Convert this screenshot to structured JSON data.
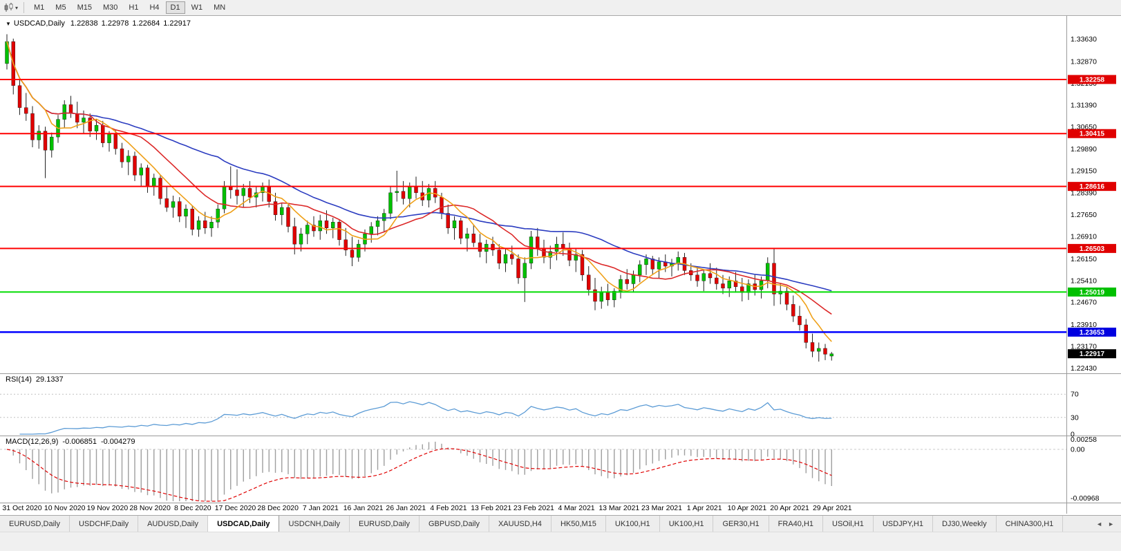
{
  "toolbar": {
    "chart_type_icon": "candlestick-chart-icon",
    "dropdown_caret": "▾",
    "timeframes": [
      "M1",
      "M5",
      "M15",
      "M30",
      "H1",
      "H4",
      "D1",
      "W1",
      "MN"
    ],
    "active": "D1"
  },
  "chart_header": {
    "menu_icon": "▼",
    "symbol": "USDCAD,Daily",
    "open": "1.22838",
    "high": "1.22978",
    "low": "1.22684",
    "close": "1.22917"
  },
  "price_axis": {
    "ticks": [
      "1.33630",
      "1.32870",
      "1.32130",
      "1.31390",
      "1.30650",
      "1.29890",
      "1.29150",
      "1.28390",
      "1.27650",
      "1.26910",
      "1.26150",
      "1.25410",
      "1.24670",
      "1.23910",
      "1.23170",
      "1.22430"
    ],
    "badges": [
      {
        "value": "1.32258",
        "color": "#e00000"
      },
      {
        "value": "1.30415",
        "color": "#e00000"
      },
      {
        "value": "1.28616",
        "color": "#e00000"
      },
      {
        "value": "1.26503",
        "color": "#e00000"
      },
      {
        "value": "1.25019",
        "color": "#00c000"
      },
      {
        "value": "1.23653",
        "color": "#0000e0"
      },
      {
        "value": "1.22917",
        "color": "#000000"
      }
    ]
  },
  "date_axis": [
    "31 Oct 2020",
    "10 Nov 2020",
    "19 Nov 2020",
    "28 Nov 2020",
    "8 Dec 2020",
    "17 Dec 2020",
    "28 Dec 2020",
    "7 Jan 2021",
    "16 Jan 2021",
    "26 Jan 2021",
    "4 Feb 2021",
    "13 Feb 2021",
    "23 Feb 2021",
    "4 Mar 2021",
    "13 Mar 2021",
    "23 Mar 2021",
    "1 Apr 2021",
    "10 Apr 2021",
    "20 Apr 2021",
    "29 Apr 2021"
  ],
  "rsi": {
    "label": "RSI(14)",
    "value": "29.1337",
    "axis": [
      "70",
      "30",
      "0"
    ]
  },
  "macd": {
    "label": "MACD(12,26,9)",
    "main": "-0.006851",
    "signal": "-0.004279",
    "axis": [
      "0.00258",
      "0.00",
      "-0.00968"
    ]
  },
  "tabs": {
    "items": [
      "EURUSD,Daily",
      "USDCHF,Daily",
      "AUDUSD,Daily",
      "USDCAD,Daily",
      "USDCNH,Daily",
      "EURUSD,Daily",
      "GBPUSD,Daily",
      "XAUUSD,H4",
      "HK50,M15",
      "UK100,H1",
      "UK100,H1",
      "GER30,H1",
      "FRA40,H1",
      "USOil,H1",
      "USDJPY,H1",
      "DJ30,Weekly",
      "CHINA300,H1"
    ],
    "active_index": 3,
    "scroll_left": "◄",
    "scroll_right": "►"
  },
  "chart_data": {
    "type": "candlestick",
    "symbol": "USDCAD",
    "timeframe": "Daily",
    "colors": {
      "up": "#00c000",
      "down": "#e00000",
      "rsi": "#5b9bd5",
      "macd_hist": "#9e9e9e",
      "macd_signal": "#e00000"
    },
    "ma": [
      {
        "name": "ma-slow-blue",
        "period": 34,
        "color": "#2b3cc0"
      },
      {
        "name": "ma-mid-red",
        "period": 14,
        "color": "#dc2828"
      },
      {
        "name": "ma-fast-orange",
        "period": 7,
        "color": "#efa018"
      }
    ],
    "levels": [
      {
        "price": 1.32258,
        "color": "#ff0000",
        "width": 2
      },
      {
        "price": 1.30415,
        "color": "#ff0000",
        "width": 2
      },
      {
        "price": 1.28616,
        "color": "#ff0000",
        "width": 2
      },
      {
        "price": 1.26503,
        "color": "#ff0000",
        "width": 2
      },
      {
        "price": 1.25019,
        "color": "#00dd00",
        "width": 2
      },
      {
        "price": 1.23653,
        "color": "#0000ff",
        "width": 2.5
      }
    ],
    "y_range": [
      1.2225,
      1.344
    ],
    "rsi_levels": [
      70,
      30
    ],
    "macd_range": [
      -0.00968,
      0.00258
    ],
    "candles": [
      [
        1.328,
        1.338,
        1.326,
        1.3355
      ],
      [
        1.3355,
        1.3365,
        1.3175,
        1.3205
      ],
      [
        1.3205,
        1.323,
        1.3105,
        1.313
      ],
      [
        1.313,
        1.318,
        1.3085,
        1.311
      ],
      [
        1.311,
        1.3135,
        1.2995,
        1.302
      ],
      [
        1.302,
        1.307,
        1.299,
        1.305
      ],
      [
        1.305,
        1.3065,
        1.289,
        1.2985
      ],
      [
        1.2985,
        1.3045,
        1.296,
        1.303
      ],
      [
        1.303,
        1.3105,
        1.301,
        1.309
      ],
      [
        1.309,
        1.3155,
        1.306,
        1.314
      ],
      [
        1.314,
        1.317,
        1.3095,
        1.311
      ],
      [
        1.311,
        1.315,
        1.306,
        1.308
      ],
      [
        1.308,
        1.312,
        1.304,
        1.3095
      ],
      [
        1.3095,
        1.311,
        1.303,
        1.305
      ],
      [
        1.305,
        1.309,
        1.302,
        1.307
      ],
      [
        1.307,
        1.3085,
        1.2995,
        1.301
      ],
      [
        1.301,
        1.305,
        1.298,
        1.304
      ],
      [
        1.304,
        1.3055,
        1.297,
        1.299
      ],
      [
        1.299,
        1.301,
        1.2925,
        1.2945
      ],
      [
        1.2945,
        1.2985,
        1.29,
        1.2965
      ],
      [
        1.2965,
        1.298,
        1.288,
        1.29
      ],
      [
        1.29,
        1.294,
        1.286,
        1.2925
      ],
      [
        1.2925,
        1.2935,
        1.284,
        1.286
      ],
      [
        1.286,
        1.2905,
        1.283,
        1.289
      ],
      [
        1.289,
        1.29,
        1.28,
        1.282
      ],
      [
        1.282,
        1.286,
        1.2775,
        1.279
      ],
      [
        1.279,
        1.283,
        1.2755,
        1.281
      ],
      [
        1.281,
        1.2825,
        1.274,
        1.276
      ],
      [
        1.276,
        1.28,
        1.272,
        1.2785
      ],
      [
        1.2785,
        1.2795,
        1.2695,
        1.2715
      ],
      [
        1.2715,
        1.276,
        1.269,
        1.2745
      ],
      [
        1.2745,
        1.2775,
        1.27,
        1.272
      ],
      [
        1.272,
        1.276,
        1.269,
        1.274
      ],
      [
        1.274,
        1.28,
        1.272,
        1.2785
      ],
      [
        1.2785,
        1.288,
        1.277,
        1.286
      ],
      [
        1.286,
        1.293,
        1.282,
        1.285
      ],
      [
        1.285,
        1.292,
        1.28,
        1.283
      ],
      [
        1.283,
        1.287,
        1.279,
        1.2855
      ],
      [
        1.2855,
        1.288,
        1.2805,
        1.2825
      ],
      [
        1.2825,
        1.286,
        1.279,
        1.284
      ],
      [
        1.284,
        1.2875,
        1.281,
        1.286
      ],
      [
        1.286,
        1.2885,
        1.279,
        1.281
      ],
      [
        1.281,
        1.284,
        1.2745,
        1.2765
      ],
      [
        1.2765,
        1.2805,
        1.273,
        1.279
      ],
      [
        1.279,
        1.28,
        1.2705,
        1.2725
      ],
      [
        1.2725,
        1.2755,
        1.263,
        1.2665
      ],
      [
        1.2665,
        1.272,
        1.264,
        1.27
      ],
      [
        1.27,
        1.2745,
        1.2665,
        1.273
      ],
      [
        1.273,
        1.276,
        1.269,
        1.271
      ],
      [
        1.271,
        1.2765,
        1.268,
        1.2745
      ],
      [
        1.2745,
        1.278,
        1.27,
        1.272
      ],
      [
        1.272,
        1.2755,
        1.2685,
        1.274
      ],
      [
        1.274,
        1.275,
        1.266,
        1.268
      ],
      [
        1.268,
        1.272,
        1.2625,
        1.2645
      ],
      [
        1.2645,
        1.269,
        1.259,
        1.262
      ],
      [
        1.262,
        1.268,
        1.2605,
        1.2665
      ],
      [
        1.2665,
        1.2715,
        1.264,
        1.27
      ],
      [
        1.27,
        1.274,
        1.267,
        1.2725
      ],
      [
        1.2725,
        1.276,
        1.2695,
        1.2745
      ],
      [
        1.2745,
        1.2785,
        1.2705,
        1.277
      ],
      [
        1.277,
        1.286,
        1.275,
        1.284
      ],
      [
        1.284,
        1.2915,
        1.281,
        1.2845
      ],
      [
        1.2845,
        1.288,
        1.28,
        1.282
      ],
      [
        1.282,
        1.2875,
        1.279,
        1.286
      ],
      [
        1.286,
        1.2895,
        1.282,
        1.284
      ],
      [
        1.284,
        1.288,
        1.2795,
        1.2815
      ],
      [
        1.2815,
        1.287,
        1.279,
        1.2855
      ],
      [
        1.2855,
        1.288,
        1.2805,
        1.2825
      ],
      [
        1.2825,
        1.284,
        1.275,
        1.277
      ],
      [
        1.277,
        1.28,
        1.27,
        1.272
      ],
      [
        1.272,
        1.276,
        1.268,
        1.2745
      ],
      [
        1.2745,
        1.2755,
        1.2665,
        1.2685
      ],
      [
        1.2685,
        1.272,
        1.264,
        1.27
      ],
      [
        1.27,
        1.273,
        1.2655,
        1.267
      ],
      [
        1.267,
        1.27,
        1.262,
        1.264
      ],
      [
        1.264,
        1.268,
        1.26,
        1.2665
      ],
      [
        1.2665,
        1.269,
        1.2625,
        1.2645
      ],
      [
        1.2645,
        1.2665,
        1.258,
        1.26
      ],
      [
        1.26,
        1.265,
        1.257,
        1.263
      ],
      [
        1.263,
        1.266,
        1.2595,
        1.2615
      ],
      [
        1.2615,
        1.263,
        1.253,
        1.255
      ],
      [
        1.255,
        1.262,
        1.2468,
        1.26
      ],
      [
        1.26,
        1.271,
        1.258,
        1.269
      ],
      [
        1.269,
        1.272,
        1.2625,
        1.265
      ],
      [
        1.265,
        1.268,
        1.26,
        1.262
      ],
      [
        1.262,
        1.266,
        1.258,
        1.264
      ],
      [
        1.264,
        1.269,
        1.261,
        1.2665
      ],
      [
        1.2665,
        1.2705,
        1.2625,
        1.265
      ],
      [
        1.265,
        1.267,
        1.259,
        1.261
      ],
      [
        1.261,
        1.265,
        1.257,
        1.263
      ],
      [
        1.263,
        1.2645,
        1.254,
        1.256
      ],
      [
        1.256,
        1.259,
        1.249,
        1.251
      ],
      [
        1.251,
        1.255,
        1.244,
        1.247
      ],
      [
        1.247,
        1.252,
        1.2445,
        1.25
      ],
      [
        1.25,
        1.253,
        1.2455,
        1.2475
      ],
      [
        1.2475,
        1.2515,
        1.245,
        1.2505
      ],
      [
        1.2505,
        1.256,
        1.248,
        1.2545
      ],
      [
        1.2545,
        1.258,
        1.251,
        1.253
      ],
      [
        1.253,
        1.2575,
        1.25,
        1.256
      ],
      [
        1.256,
        1.261,
        1.2535,
        1.2595
      ],
      [
        1.2595,
        1.263,
        1.256,
        1.2615
      ],
      [
        1.2615,
        1.2625,
        1.256,
        1.258
      ],
      [
        1.258,
        1.262,
        1.255,
        1.2605
      ],
      [
        1.2605,
        1.263,
        1.257,
        1.259
      ],
      [
        1.259,
        1.2615,
        1.2555,
        1.26
      ],
      [
        1.26,
        1.264,
        1.2575,
        1.262
      ],
      [
        1.262,
        1.2635,
        1.256,
        1.2575
      ],
      [
        1.2575,
        1.26,
        1.254,
        1.256
      ],
      [
        1.256,
        1.259,
        1.252,
        1.254
      ],
      [
        1.254,
        1.258,
        1.2505,
        1.2565
      ],
      [
        1.2565,
        1.26,
        1.253,
        1.255
      ],
      [
        1.255,
        1.2585,
        1.251,
        1.253
      ],
      [
        1.253,
        1.256,
        1.2495,
        1.2515
      ],
      [
        1.2515,
        1.2555,
        1.2485,
        1.254
      ],
      [
        1.254,
        1.257,
        1.25,
        1.252
      ],
      [
        1.252,
        1.255,
        1.247,
        1.25
      ],
      [
        1.25,
        1.2545,
        1.2475,
        1.253
      ],
      [
        1.253,
        1.256,
        1.249,
        1.251
      ],
      [
        1.251,
        1.2555,
        1.248,
        1.254
      ],
      [
        1.254,
        1.262,
        1.2515,
        1.26
      ],
      [
        1.26,
        1.265,
        1.2455,
        1.2495
      ],
      [
        1.2495,
        1.253,
        1.246,
        1.2505
      ],
      [
        1.2505,
        1.252,
        1.244,
        1.246
      ],
      [
        1.246,
        1.249,
        1.24,
        1.242
      ],
      [
        1.242,
        1.2455,
        1.237,
        1.239
      ],
      [
        1.239,
        1.241,
        1.231,
        1.233
      ],
      [
        1.233,
        1.236,
        1.228,
        1.23
      ],
      [
        1.23,
        1.233,
        1.2265,
        1.231
      ],
      [
        1.231,
        1.2325,
        1.227,
        1.229
      ],
      [
        1.22838,
        1.22978,
        1.22684,
        1.22917
      ]
    ]
  }
}
